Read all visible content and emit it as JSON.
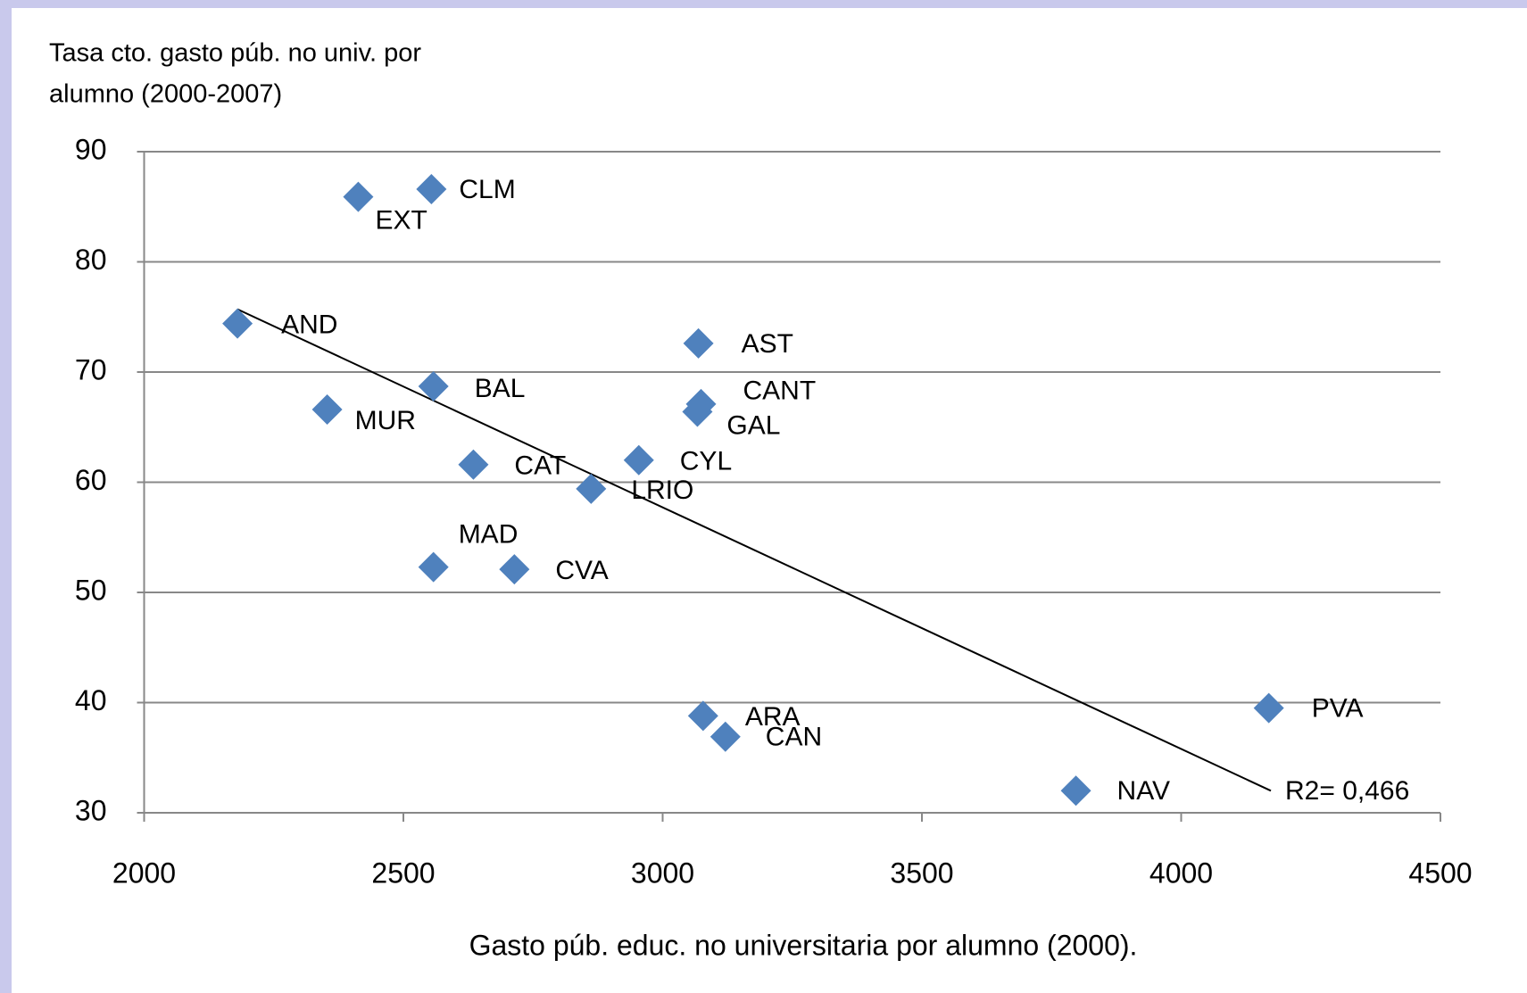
{
  "chart_data": {
    "type": "scatter",
    "ylabel": [
      "Tasa cto. gasto púb. no univ. por",
      "alumno (2000-2007)"
    ],
    "xlabel": "Gasto púb. educ. no universitaria por alumno (2000).",
    "labels": [
      "AND",
      "EXT",
      "CLM",
      "AST",
      "BAL",
      "MUR",
      "CANT",
      "GAL",
      "CAT",
      "CYL",
      "LRIO",
      "MAD",
      "CVA",
      "ARA",
      "CAN",
      "PVA",
      "NAV"
    ],
    "x": [
      2180,
      2413,
      2554,
      3069,
      2558,
      2353,
      3074,
      3067,
      2635,
      2954,
      2862,
      2558,
      2714,
      3078,
      3121,
      4169,
      3797
    ],
    "y": [
      74.4,
      85.9,
      86.6,
      72.6,
      68.7,
      66.6,
      67.1,
      66.4,
      61.6,
      62.0,
      59.4,
      52.3,
      52.1,
      38.8,
      36.9,
      39.5,
      32.0
    ],
    "color": "#4f81bd",
    "trendline": {
      "x": [
        2180,
        4173
      ],
      "y": [
        75.7,
        32.0
      ],
      "color": "#000000"
    },
    "annotation": "R2= 0,466",
    "xlim": [
      2000,
      4500
    ],
    "xticks": [
      2000,
      2500,
      3000,
      3500,
      4000,
      4500
    ],
    "ylim": [
      30,
      90
    ],
    "yticks": [
      30,
      40,
      50,
      60,
      70,
      80,
      90
    ],
    "grid": true
  }
}
